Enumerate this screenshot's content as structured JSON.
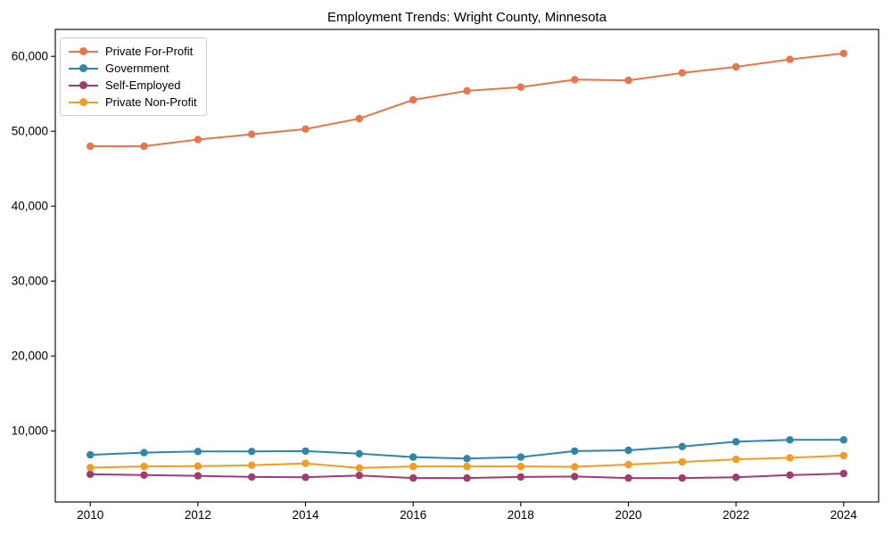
{
  "chart_data": {
    "type": "line",
    "title": "Employment Trends: Wright County, Minnesota",
    "xlabel": "",
    "ylabel": "",
    "x": [
      2010,
      2011,
      2012,
      2013,
      2014,
      2015,
      2016,
      2017,
      2018,
      2019,
      2020,
      2021,
      2022,
      2023,
      2024
    ],
    "series": [
      {
        "name": "Private For-Profit",
        "color": "#e8764a",
        "values": [
          48000,
          48000,
          48900,
          49600,
          50300,
          51700,
          54200,
          55400,
          55900,
          56900,
          56800,
          57800,
          58600,
          59600,
          60400
        ]
      },
      {
        "name": "Government",
        "color": "#2e86ab",
        "values": [
          6800,
          7100,
          7250,
          7250,
          7300,
          6950,
          6500,
          6300,
          6500,
          7300,
          7400,
          7900,
          8550,
          8800,
          8800
        ]
      },
      {
        "name": "Self-Employed",
        "color": "#a23b72",
        "values": [
          4200,
          4100,
          4000,
          3850,
          3800,
          4050,
          3700,
          3700,
          3850,
          3900,
          3700,
          3700,
          3800,
          4100,
          4300
        ]
      },
      {
        "name": "Private Non-Profit",
        "color": "#f39c1f",
        "values": [
          5100,
          5250,
          5300,
          5400,
          5650,
          5050,
          5250,
          5250,
          5250,
          5200,
          5500,
          5850,
          6200,
          6400,
          6700
        ]
      }
    ],
    "xticks": [
      2010,
      2012,
      2014,
      2016,
      2018,
      2020,
      2022,
      2024
    ],
    "yticks": [
      10000,
      20000,
      30000,
      40000,
      50000,
      60000
    ],
    "ytick_labels": [
      "10,000",
      "20,000",
      "30,000",
      "40,000",
      "50,000",
      "60,000"
    ],
    "xlim": [
      2009.35,
      2024.65
    ],
    "ylim": [
      500,
      63600
    ],
    "grid": false,
    "legend_position": "upper left",
    "marker": "circle"
  }
}
